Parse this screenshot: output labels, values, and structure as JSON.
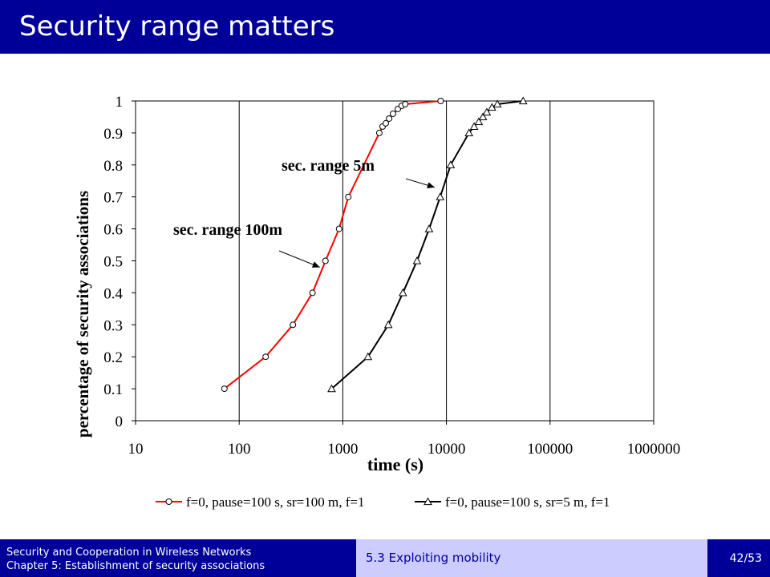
{
  "slide": {
    "title": "Security range matters",
    "footer": {
      "course": "Security and Cooperation in Wireless Networks",
      "chapter": "Chapter 5: Establishment of security associations",
      "section": "5.3 Exploiting mobility",
      "page": "42/53"
    }
  },
  "colors": {
    "title_bar": "#000099",
    "section_box": "#ccccff",
    "series_red": "#ff0000",
    "series_black": "#000000"
  },
  "chart_data": {
    "type": "line",
    "xlabel": "time (s)",
    "ylabel": "percentage of security associations",
    "xscale": "log",
    "xlim": [
      10,
      1000000
    ],
    "ylim": [
      0,
      1
    ],
    "xticks": [
      "10",
      "100",
      "1000",
      "10000",
      "100000",
      "1000000"
    ],
    "yticks": [
      "0",
      "0.1",
      "0.2",
      "0.3",
      "0.4",
      "0.5",
      "0.6",
      "0.7",
      "0.8",
      "0.9",
      "1"
    ],
    "grid": "vertical",
    "legend_position": "bottom",
    "series": [
      {
        "name": "f=0, pause=100 s, sr=100 m, f=1",
        "color": "#ff0000",
        "marker": "circle",
        "points": [
          [
            72,
            0.1
          ],
          [
            180,
            0.2
          ],
          [
            330,
            0.3
          ],
          [
            510,
            0.4
          ],
          [
            680,
            0.5
          ],
          [
            920,
            0.6
          ],
          [
            1130,
            0.7
          ],
          [
            2250,
            0.9
          ],
          [
            2420,
            0.92
          ],
          [
            2600,
            0.93
          ],
          [
            2800,
            0.945
          ],
          [
            3050,
            0.96
          ],
          [
            3400,
            0.975
          ],
          [
            3700,
            0.985
          ],
          [
            4000,
            0.99
          ],
          [
            8800,
            1.0
          ]
        ]
      },
      {
        "name": "f=0, pause=100 s, sr=5 m, f=1",
        "color": "#000000",
        "marker": "triangle",
        "points": [
          [
            780,
            0.1
          ],
          [
            1750,
            0.2
          ],
          [
            2750,
            0.3
          ],
          [
            3800,
            0.4
          ],
          [
            5200,
            0.5
          ],
          [
            6800,
            0.6
          ],
          [
            8700,
            0.7
          ],
          [
            11000,
            0.8
          ],
          [
            16500,
            0.9
          ],
          [
            18500,
            0.92
          ],
          [
            20500,
            0.935
          ],
          [
            22500,
            0.95
          ],
          [
            24500,
            0.965
          ],
          [
            27500,
            0.98
          ],
          [
            31000,
            0.99
          ],
          [
            55000,
            1.0
          ]
        ]
      }
    ],
    "annotations": [
      {
        "text": "sec. range 5m",
        "target": [
          7700,
          0.73
        ]
      },
      {
        "text": "sec. range 100m",
        "target": [
          600,
          0.48
        ]
      }
    ]
  }
}
